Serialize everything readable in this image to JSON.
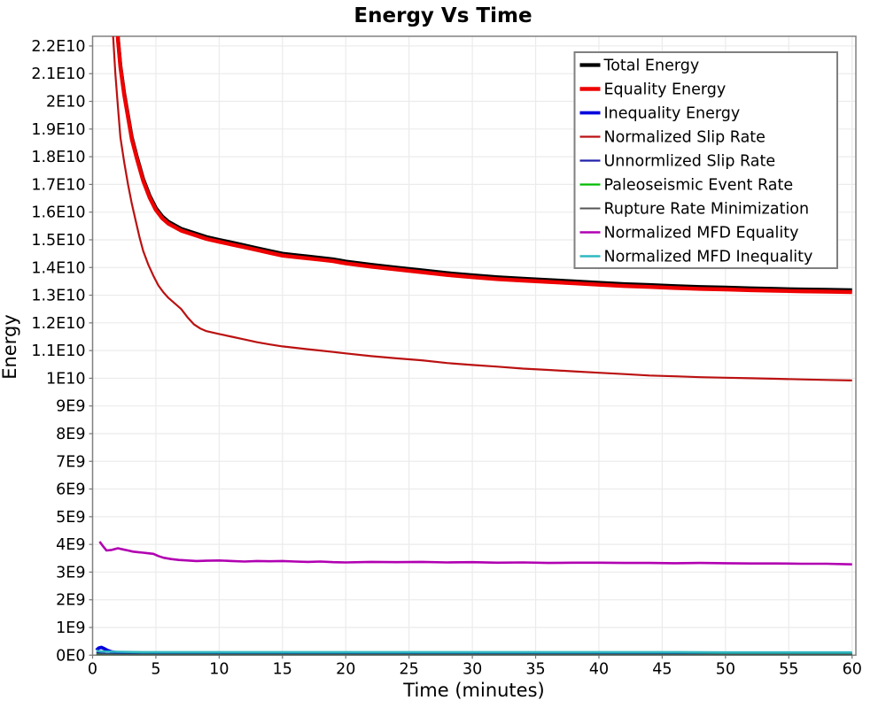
{
  "title": "Energy Vs Time",
  "chart_data": {
    "type": "line",
    "title": "Energy Vs Time",
    "xlabel": "Time (minutes)",
    "ylabel": "Energy",
    "xlim": [
      0,
      60.3
    ],
    "ylim": [
      0,
      22350000000
    ],
    "y_value_multiplier": 1000000000,
    "grid": true,
    "legend_position": "top-right",
    "background_color": "#ffffff",
    "gridline_color": "#ebebeb",
    "border_color": "#808080",
    "tick_color": "#777777",
    "x_ticks": [
      0,
      5,
      10,
      15,
      20,
      25,
      30,
      35,
      40,
      45,
      50,
      55,
      60
    ],
    "y_ticks": [
      {
        "value": 0,
        "label": "0E0"
      },
      {
        "value": 1000000000,
        "label": "1E9"
      },
      {
        "value": 2000000000,
        "label": "2E9"
      },
      {
        "value": 3000000000,
        "label": "3E9"
      },
      {
        "value": 4000000000,
        "label": "4E9"
      },
      {
        "value": 5000000000,
        "label": "5E9"
      },
      {
        "value": 6000000000,
        "label": "6E9"
      },
      {
        "value": 7000000000,
        "label": "7E9"
      },
      {
        "value": 8000000000,
        "label": "8E9"
      },
      {
        "value": 9000000000,
        "label": "9E9"
      },
      {
        "value": 10000000000,
        "label": "1E10"
      },
      {
        "value": 11000000000,
        "label": "1.1E10"
      },
      {
        "value": 12000000000,
        "label": "1.2E10"
      },
      {
        "value": 13000000000,
        "label": "1.3E10"
      },
      {
        "value": 14000000000,
        "label": "1.4E10"
      },
      {
        "value": 15000000000,
        "label": "1.5E10"
      },
      {
        "value": 16000000000,
        "label": "1.6E10"
      },
      {
        "value": 17000000000,
        "label": "1.7E10"
      },
      {
        "value": 18000000000,
        "label": "1.8E10"
      },
      {
        "value": 19000000000,
        "label": "1.9E10"
      },
      {
        "value": 20000000000,
        "label": "2E10"
      },
      {
        "value": 21000000000,
        "label": "2.1E10"
      },
      {
        "value": 22000000000,
        "label": "2.2E10"
      }
    ],
    "series": [
      {
        "name": "Total Energy",
        "color": "#000000",
        "width": 4.2,
        "points": [
          [
            1.5,
            30
          ],
          [
            1.8,
            24.5
          ],
          [
            2,
            22.3
          ],
          [
            2.2,
            21.3
          ],
          [
            2.5,
            20.3
          ],
          [
            2.8,
            19.5
          ],
          [
            3.1,
            18.7
          ],
          [
            3.5,
            18
          ],
          [
            4,
            17.2
          ],
          [
            4.5,
            16.6
          ],
          [
            5,
            16.15
          ],
          [
            5.5,
            15.85
          ],
          [
            6,
            15.65
          ],
          [
            7,
            15.4
          ],
          [
            8,
            15.25
          ],
          [
            9,
            15.1
          ],
          [
            10,
            15
          ],
          [
            11,
            14.9
          ],
          [
            12,
            14.8
          ],
          [
            13,
            14.7
          ],
          [
            14,
            14.6
          ],
          [
            15,
            14.5
          ],
          [
            16,
            14.45
          ],
          [
            17,
            14.4
          ],
          [
            18,
            14.35
          ],
          [
            19,
            14.3
          ],
          [
            20,
            14.22
          ],
          [
            22,
            14.1
          ],
          [
            24,
            14
          ],
          [
            26,
            13.9
          ],
          [
            28,
            13.8
          ],
          [
            30,
            13.72
          ],
          [
            32,
            13.65
          ],
          [
            34,
            13.6
          ],
          [
            36,
            13.55
          ],
          [
            38,
            13.5
          ],
          [
            40,
            13.45
          ],
          [
            42,
            13.4
          ],
          [
            44,
            13.37
          ],
          [
            46,
            13.33
          ],
          [
            48,
            13.3
          ],
          [
            50,
            13.28
          ],
          [
            52,
            13.25
          ],
          [
            54,
            13.23
          ],
          [
            56,
            13.21
          ],
          [
            58,
            13.2
          ],
          [
            60,
            13.18
          ]
        ]
      },
      {
        "name": "Equality Energy",
        "color": "#ee0000",
        "width": 4.4,
        "points": [
          [
            1.5,
            29.93
          ],
          [
            1.8,
            24.43
          ],
          [
            2,
            22.23
          ],
          [
            2.2,
            21.23
          ],
          [
            2.5,
            20.23
          ],
          [
            2.8,
            19.43
          ],
          [
            3.1,
            18.63
          ],
          [
            3.5,
            17.93
          ],
          [
            4,
            17.13
          ],
          [
            4.5,
            16.53
          ],
          [
            5,
            16.08
          ],
          [
            5.5,
            15.78
          ],
          [
            6,
            15.58
          ],
          [
            7,
            15.33
          ],
          [
            8,
            15.18
          ],
          [
            9,
            15.03
          ],
          [
            10,
            14.93
          ],
          [
            11,
            14.83
          ],
          [
            12,
            14.73
          ],
          [
            13,
            14.63
          ],
          [
            14,
            14.53
          ],
          [
            15,
            14.43
          ],
          [
            16,
            14.38
          ],
          [
            17,
            14.33
          ],
          [
            18,
            14.28
          ],
          [
            19,
            14.23
          ],
          [
            20,
            14.15
          ],
          [
            22,
            14.03
          ],
          [
            24,
            13.93
          ],
          [
            26,
            13.83
          ],
          [
            28,
            13.73
          ],
          [
            30,
            13.65
          ],
          [
            32,
            13.58
          ],
          [
            34,
            13.53
          ],
          [
            36,
            13.48
          ],
          [
            38,
            13.43
          ],
          [
            40,
            13.38
          ],
          [
            42,
            13.33
          ],
          [
            44,
            13.3
          ],
          [
            46,
            13.26
          ],
          [
            48,
            13.23
          ],
          [
            50,
            13.21
          ],
          [
            52,
            13.18
          ],
          [
            54,
            13.16
          ],
          [
            56,
            13.14
          ],
          [
            58,
            13.13
          ],
          [
            60,
            13.11
          ]
        ]
      },
      {
        "name": "Inequality Energy",
        "color": "#0000dd",
        "width": 3.8,
        "points": [
          [
            0.3,
            0.18
          ],
          [
            0.5,
            0.26
          ],
          [
            0.7,
            0.28
          ],
          [
            0.9,
            0.24
          ],
          [
            1.2,
            0.17
          ],
          [
            1.5,
            0.12
          ],
          [
            2,
            0.08
          ],
          [
            3,
            0.06
          ],
          [
            4,
            0.05
          ],
          [
            5,
            0.05
          ],
          [
            7,
            0.05
          ],
          [
            10,
            0.05
          ],
          [
            15,
            0.05
          ],
          [
            20,
            0.05
          ],
          [
            25,
            0.05
          ],
          [
            30,
            0.05
          ],
          [
            35,
            0.05
          ],
          [
            40,
            0.05
          ],
          [
            45,
            0.05
          ],
          [
            50,
            0.05
          ],
          [
            55,
            0.05
          ],
          [
            60,
            0.05
          ]
        ]
      },
      {
        "name": "Normalized Slip Rate",
        "color": "#bb1111",
        "width": 2.2,
        "points": [
          [
            1.2,
            30
          ],
          [
            1.4,
            25
          ],
          [
            1.6,
            22.5
          ],
          [
            1.8,
            21
          ],
          [
            2,
            19.8
          ],
          [
            2.2,
            18.7
          ],
          [
            2.5,
            17.8
          ],
          [
            2.8,
            17
          ],
          [
            3.1,
            16.3
          ],
          [
            3.4,
            15.7
          ],
          [
            3.7,
            15.1
          ],
          [
            4,
            14.6
          ],
          [
            4.4,
            14.1
          ],
          [
            4.8,
            13.7
          ],
          [
            5.2,
            13.35
          ],
          [
            5.6,
            13.1
          ],
          [
            6,
            12.9
          ],
          [
            6.5,
            12.7
          ],
          [
            7,
            12.5
          ],
          [
            7.5,
            12.2
          ],
          [
            8,
            11.95
          ],
          [
            8.5,
            11.8
          ],
          [
            9,
            11.7
          ],
          [
            10,
            11.6
          ],
          [
            11,
            11.5
          ],
          [
            12,
            11.4
          ],
          [
            13,
            11.3
          ],
          [
            14,
            11.22
          ],
          [
            15,
            11.15
          ],
          [
            16,
            11.1
          ],
          [
            17,
            11.05
          ],
          [
            18,
            11
          ],
          [
            19,
            10.95
          ],
          [
            20,
            10.9
          ],
          [
            22,
            10.8
          ],
          [
            24,
            10.72
          ],
          [
            26,
            10.65
          ],
          [
            28,
            10.55
          ],
          [
            30,
            10.48
          ],
          [
            32,
            10.42
          ],
          [
            34,
            10.35
          ],
          [
            36,
            10.3
          ],
          [
            38,
            10.25
          ],
          [
            40,
            10.2
          ],
          [
            42,
            10.15
          ],
          [
            44,
            10.1
          ],
          [
            46,
            10.07
          ],
          [
            48,
            10.04
          ],
          [
            50,
            10.02
          ],
          [
            52,
            10
          ],
          [
            54,
            9.98
          ],
          [
            56,
            9.96
          ],
          [
            58,
            9.94
          ],
          [
            60,
            9.92
          ]
        ]
      },
      {
        "name": "Unnormlized Slip Rate",
        "color": "#2222aa",
        "width": 2.2,
        "points": [
          [
            0.3,
            0.1
          ],
          [
            0.6,
            0.07
          ],
          [
            1,
            0.05
          ],
          [
            2,
            0.03
          ],
          [
            5,
            0.02
          ],
          [
            10,
            0.02
          ],
          [
            20,
            0.02
          ],
          [
            30,
            0.02
          ],
          [
            40,
            0.02
          ],
          [
            50,
            0.02
          ],
          [
            60,
            0.02
          ]
        ]
      },
      {
        "name": "Paleoseismic Event Rate",
        "color": "#00bb00",
        "width": 2.2,
        "points": [
          [
            0.3,
            0.03
          ],
          [
            1,
            0.02
          ],
          [
            5,
            0.015
          ],
          [
            10,
            0.015
          ],
          [
            20,
            0.015
          ],
          [
            30,
            0.015
          ],
          [
            40,
            0.015
          ],
          [
            50,
            0.015
          ],
          [
            60,
            0.015
          ]
        ]
      },
      {
        "name": "Rupture Rate Minimization",
        "color": "#555555",
        "width": 2.0,
        "points": [
          [
            0.3,
            0.02
          ],
          [
            1,
            0.015
          ],
          [
            5,
            0.01
          ],
          [
            10,
            0.01
          ],
          [
            20,
            0.01
          ],
          [
            30,
            0.01
          ],
          [
            40,
            0.01
          ],
          [
            50,
            0.01
          ],
          [
            60,
            0.01
          ]
        ]
      },
      {
        "name": "Normalized MFD Equality",
        "color": "#b100b1",
        "width": 2.6,
        "points": [
          [
            0.55,
            4.1
          ],
          [
            0.8,
            3.95
          ],
          [
            1.1,
            3.78
          ],
          [
            1.5,
            3.8
          ],
          [
            2,
            3.86
          ],
          [
            2.4,
            3.82
          ],
          [
            2.8,
            3.78
          ],
          [
            3.2,
            3.74
          ],
          [
            3.6,
            3.72
          ],
          [
            4,
            3.7
          ],
          [
            4.4,
            3.68
          ],
          [
            4.8,
            3.66
          ],
          [
            5.2,
            3.58
          ],
          [
            5.6,
            3.52
          ],
          [
            6.2,
            3.47
          ],
          [
            6.8,
            3.44
          ],
          [
            7.5,
            3.42
          ],
          [
            8.2,
            3.4
          ],
          [
            9,
            3.41
          ],
          [
            10,
            3.42
          ],
          [
            11,
            3.4
          ],
          [
            12,
            3.38
          ],
          [
            13,
            3.4
          ],
          [
            14,
            3.39
          ],
          [
            15,
            3.4
          ],
          [
            16,
            3.38
          ],
          [
            17,
            3.37
          ],
          [
            18,
            3.38
          ],
          [
            19,
            3.36
          ],
          [
            20,
            3.35
          ],
          [
            22,
            3.37
          ],
          [
            24,
            3.36
          ],
          [
            26,
            3.37
          ],
          [
            28,
            3.35
          ],
          [
            30,
            3.36
          ],
          [
            32,
            3.34
          ],
          [
            34,
            3.35
          ],
          [
            36,
            3.33
          ],
          [
            38,
            3.34
          ],
          [
            40,
            3.34
          ],
          [
            42,
            3.33
          ],
          [
            44,
            3.33
          ],
          [
            46,
            3.32
          ],
          [
            48,
            3.33
          ],
          [
            50,
            3.32
          ],
          [
            52,
            3.31
          ],
          [
            54,
            3.31
          ],
          [
            56,
            3.3
          ],
          [
            58,
            3.3
          ],
          [
            60,
            3.28
          ]
        ]
      },
      {
        "name": "Normalized MFD Inequality",
        "color": "#2fb8c0",
        "width": 2.6,
        "points": [
          [
            0.3,
            0.16
          ],
          [
            0.6,
            0.14
          ],
          [
            1,
            0.13
          ],
          [
            2,
            0.12
          ],
          [
            4,
            0.11
          ],
          [
            6,
            0.11
          ],
          [
            10,
            0.11
          ],
          [
            15,
            0.11
          ],
          [
            20,
            0.11
          ],
          [
            25,
            0.11
          ],
          [
            30,
            0.11
          ],
          [
            35,
            0.11
          ],
          [
            40,
            0.11
          ],
          [
            45,
            0.11
          ],
          [
            50,
            0.1
          ],
          [
            55,
            0.1
          ],
          [
            60,
            0.1
          ]
        ]
      }
    ]
  }
}
